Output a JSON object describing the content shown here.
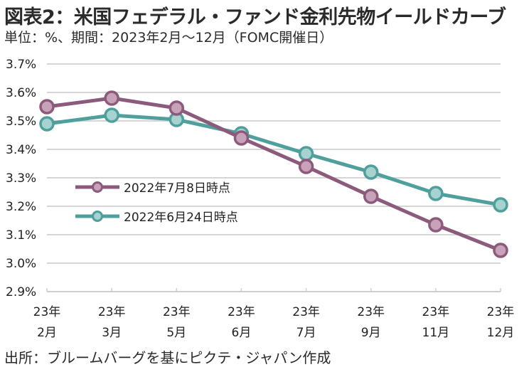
{
  "header": {
    "title": "図表2：米国フェデラル・ファンド金利先物イールドカーブ",
    "subtitle": "単位：%、期間：2023年2月～12月（FOMC開催日）"
  },
  "footer": {
    "source": "出所：ブルームバーグを基にピクテ・ジャパン作成"
  },
  "chart_data": {
    "type": "line",
    "title": "図表2：米国フェデラル・ファンド金利先物イールドカーブ",
    "subtitle": "単位：%、期間：2023年2月～12月（FOMC開催日）",
    "xlabel": "",
    "ylabel": "",
    "categories": [
      [
        "23年",
        "2月"
      ],
      [
        "23年",
        "3月"
      ],
      [
        "23年",
        "5月"
      ],
      [
        "23年",
        "6月"
      ],
      [
        "23年",
        "7月"
      ],
      [
        "23年",
        "9月"
      ],
      [
        "23年",
        "11月"
      ],
      [
        "23年",
        "12月"
      ]
    ],
    "ylim": [
      2.9,
      3.7
    ],
    "yticks": [
      3.7,
      3.6,
      3.5,
      3.4,
      3.3,
      3.2,
      3.1,
      3.0,
      2.9
    ],
    "ytick_labels": [
      "3.7%",
      "3.6%",
      "3.5%",
      "3.4%",
      "3.3%",
      "3.2%",
      "3.1%",
      "3.0%",
      "2.9%"
    ],
    "grid": true,
    "legend_position": "center-left",
    "series": [
      {
        "name": "2022年7月8日時点",
        "color": "#8c5a7b",
        "fill": "#c8a2b8",
        "values": [
          3.55,
          3.58,
          3.545,
          3.44,
          3.34,
          3.235,
          3.135,
          3.045
        ]
      },
      {
        "name": "2022年6月24日時点",
        "color": "#4f9f9d",
        "fill": "#a6d2cf",
        "values": [
          3.49,
          3.52,
          3.505,
          3.455,
          3.385,
          3.32,
          3.245,
          3.205
        ]
      }
    ]
  }
}
